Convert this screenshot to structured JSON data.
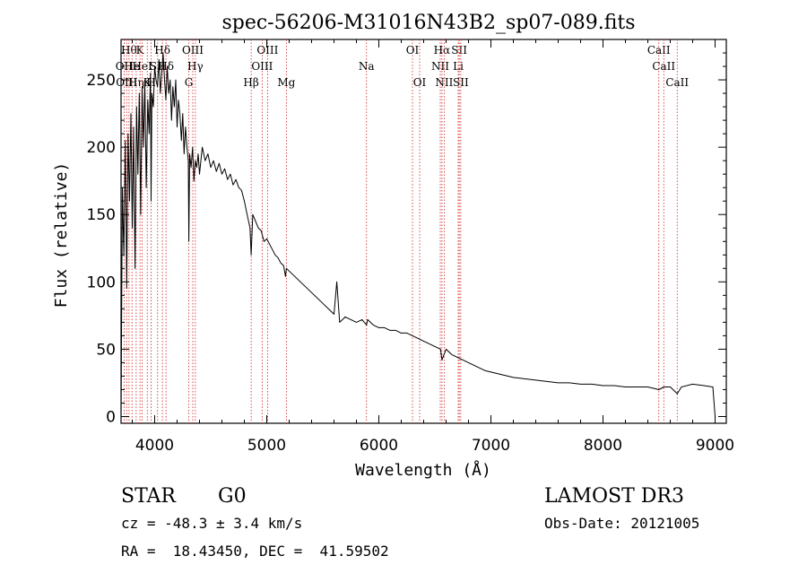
{
  "header": {
    "title": "spec-56206-M31016N43B2_sp07-089.fits"
  },
  "info": {
    "object_type": "STAR",
    "subclass": "G0",
    "survey": "LAMOST DR3",
    "cz": "cz = -48.3 ± 3.4 km/s",
    "obs_date": "Obs-Date: 20121005",
    "coords": "RA =  18.43450, DEC =  41.59502"
  },
  "colors": {
    "line_marker": "#d02020",
    "spectrum": "#000000",
    "axis": "#000000"
  },
  "chart_data": {
    "type": "line",
    "title": "spec-56206-M31016N43B2_sp07-089.fits",
    "xlabel": "Wavelength (Å)",
    "ylabel": "Flux (relative)",
    "xlim": [
      3700,
      9100
    ],
    "ylim": [
      -5,
      280
    ],
    "x_ticks": [
      4000,
      5000,
      6000,
      7000,
      8000,
      9000
    ],
    "x_tick_labels": [
      "4000",
      "5000",
      "6000",
      "7000",
      "8000",
      "9000"
    ],
    "y_ticks": [
      0,
      50,
      100,
      150,
      200,
      250
    ],
    "y_tick_labels": [
      "0",
      "50",
      "100",
      "150",
      "200",
      "250"
    ],
    "series": [
      {
        "name": "flux",
        "x": [
          3700,
          3712,
          3725,
          3738,
          3750,
          3762,
          3775,
          3788,
          3800,
          3812,
          3825,
          3838,
          3850,
          3862,
          3875,
          3888,
          3900,
          3912,
          3925,
          3938,
          3950,
          3962,
          3968,
          3975,
          3988,
          4000,
          4012,
          4025,
          4038,
          4050,
          4062,
          4075,
          4088,
          4100,
          4112,
          4125,
          4138,
          4150,
          4162,
          4175,
          4188,
          4200,
          4212,
          4225,
          4238,
          4250,
          4262,
          4275,
          4288,
          4300,
          4305,
          4312,
          4325,
          4338,
          4350,
          4362,
          4375,
          4388,
          4400,
          4425,
          4450,
          4475,
          4500,
          4525,
          4550,
          4575,
          4600,
          4625,
          4650,
          4675,
          4700,
          4725,
          4750,
          4775,
          4800,
          4825,
          4850,
          4861,
          4875,
          4900,
          4925,
          4950,
          4975,
          5000,
          5025,
          5050,
          5075,
          5100,
          5125,
          5150,
          5167,
          5175,
          5200,
          5250,
          5300,
          5350,
          5400,
          5450,
          5500,
          5550,
          5600,
          5625,
          5650,
          5700,
          5750,
          5800,
          5850,
          5890,
          5900,
          5950,
          6000,
          6050,
          6100,
          6150,
          6200,
          6250,
          6300,
          6350,
          6400,
          6450,
          6500,
          6550,
          6563,
          6600,
          6650,
          6700,
          6750,
          6800,
          6850,
          6900,
          6950,
          7000,
          7100,
          7200,
          7300,
          7400,
          7500,
          7600,
          7700,
          7800,
          7900,
          8000,
          8100,
          8200,
          8300,
          8400,
          8498,
          8542,
          8600,
          8662,
          8700,
          8800,
          8900,
          8980,
          9000
        ],
        "values": [
          0,
          170,
          120,
          205,
          95,
          210,
          160,
          225,
          140,
          215,
          110,
          230,
          180,
          240,
          150,
          245,
          200,
          250,
          170,
          235,
          210,
          255,
          160,
          240,
          230,
          260,
          250,
          245,
          265,
          240,
          255,
          270,
          250,
          235,
          260,
          240,
          250,
          220,
          245,
          230,
          250,
          215,
          235,
          225,
          205,
          225,
          195,
          215,
          200,
          190,
          130,
          195,
          185,
          200,
          175,
          190,
          185,
          195,
          180,
          200,
          190,
          195,
          185,
          190,
          182,
          188,
          180,
          184,
          176,
          180,
          172,
          176,
          170,
          168,
          160,
          150,
          140,
          120,
          150,
          145,
          140,
          138,
          130,
          132,
          128,
          124,
          120,
          118,
          114,
          112,
          104,
          110,
          108,
          104,
          100,
          96,
          92,
          88,
          84,
          80,
          76,
          100,
          70,
          74,
          72,
          70,
          72,
          68,
          72,
          68,
          66,
          66,
          64,
          64,
          62,
          62,
          60,
          58,
          56,
          54,
          52,
          50,
          42,
          50,
          46,
          44,
          42,
          40,
          38,
          36,
          34,
          33,
          31,
          29,
          28,
          27,
          26,
          25,
          25,
          24,
          24,
          23,
          23,
          22,
          22,
          22,
          20,
          22,
          22,
          17,
          22,
          24,
          23,
          22,
          0
        ]
      }
    ],
    "line_markers": [
      {
        "wavelength": 3727,
        "label": "OII",
        "row": 1
      },
      {
        "wavelength": 3750,
        "label": "OIII",
        "row": 2
      },
      {
        "wavelength": 3771,
        "label": "Hθ",
        "row": 0
      },
      {
        "wavelength": 3798,
        "label": "He",
        "row": 1
      },
      {
        "wavelength": 3835,
        "label": "Hη",
        "row": 2
      },
      {
        "wavelength": 3869,
        "label": "K",
        "row": 0
      },
      {
        "wavelength": 3889,
        "label": "HeI",
        "row": 1
      },
      {
        "wavelength": 3934,
        "label": "K",
        "row": 2
      },
      {
        "wavelength": 3968,
        "label": "H",
        "row": 2
      },
      {
        "wavelength": 4026,
        "label": "SII",
        "row": 1
      },
      {
        "wavelength": 4069,
        "label": "Hδ",
        "row": 0
      },
      {
        "wavelength": 4101,
        "label": "Hδ",
        "row": 1
      },
      {
        "wavelength": 4304,
        "label": "G",
        "row": 2
      },
      {
        "wavelength": 4340,
        "label": "OIII",
        "row": 0
      },
      {
        "wavelength": 4363,
        "label": "Hγ",
        "row": 1
      },
      {
        "wavelength": 4861,
        "label": "Hβ",
        "row": 2
      },
      {
        "wavelength": 4959,
        "label": "OIII",
        "row": 1
      },
      {
        "wavelength": 5007,
        "label": "OIII",
        "row": 0
      },
      {
        "wavelength": 5175,
        "label": "Mg",
        "row": 2
      },
      {
        "wavelength": 5890,
        "label": "Na",
        "row": 1
      },
      {
        "wavelength": 6300,
        "label": "OI",
        "row": 0
      },
      {
        "wavelength": 6364,
        "label": "OI",
        "row": 2
      },
      {
        "wavelength": 6548,
        "label": "NII",
        "row": 1
      },
      {
        "wavelength": 6563,
        "label": "Hα",
        "row": 0
      },
      {
        "wavelength": 6583,
        "label": "NII",
        "row": 2
      },
      {
        "wavelength": 6708,
        "label": "Li",
        "row": 1
      },
      {
        "wavelength": 6717,
        "label": "SII",
        "row": 0
      },
      {
        "wavelength": 6731,
        "label": "SII",
        "row": 2
      },
      {
        "wavelength": 8498,
        "label": "CaII",
        "row": 0
      },
      {
        "wavelength": 8542,
        "label": "CaII",
        "row": 1
      },
      {
        "wavelength": 8662,
        "label": "CaII",
        "row": 2
      }
    ]
  }
}
